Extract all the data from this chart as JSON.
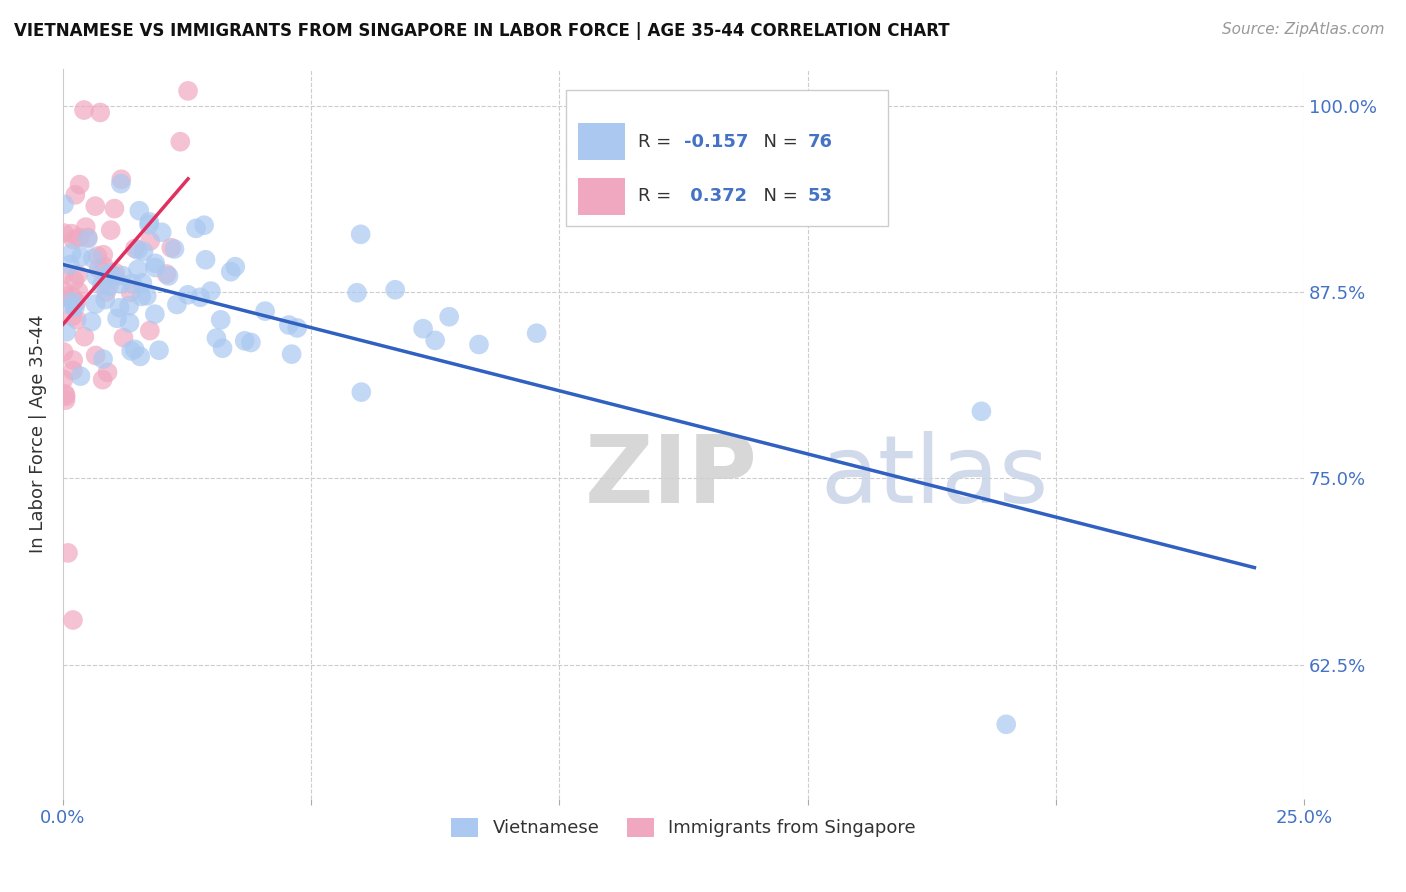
{
  "title": "VIETNAMESE VS IMMIGRANTS FROM SINGAPORE IN LABOR FORCE | AGE 35-44 CORRELATION CHART",
  "source": "Source: ZipAtlas.com",
  "ylabel": "In Labor Force | Age 35-44",
  "xlim": [
    0.0,
    0.25
  ],
  "ylim": [
    0.535,
    1.025
  ],
  "yticks": [
    0.625,
    0.75,
    0.875,
    1.0
  ],
  "ytick_labels": [
    "62.5%",
    "75.0%",
    "87.5%",
    "100.0%"
  ],
  "xtick_labels": [
    "0.0%",
    "",
    "",
    "",
    "",
    "25.0%"
  ],
  "series1_color": "#aac8f0",
  "series2_color": "#f0a8c0",
  "trendline1_color": "#3060c0",
  "trendline2_color": "#e03060",
  "legend_box_color1": "#aac8f0",
  "legend_box_color2": "#f0a8c0",
  "R1": -0.157,
  "N1": 76,
  "R2": 0.372,
  "N2": 53,
  "legend_label1": "Vietnamese",
  "legend_label2": "Immigrants from Singapore",
  "watermark_zip": "ZIP",
  "watermark_atlas": "atlas"
}
